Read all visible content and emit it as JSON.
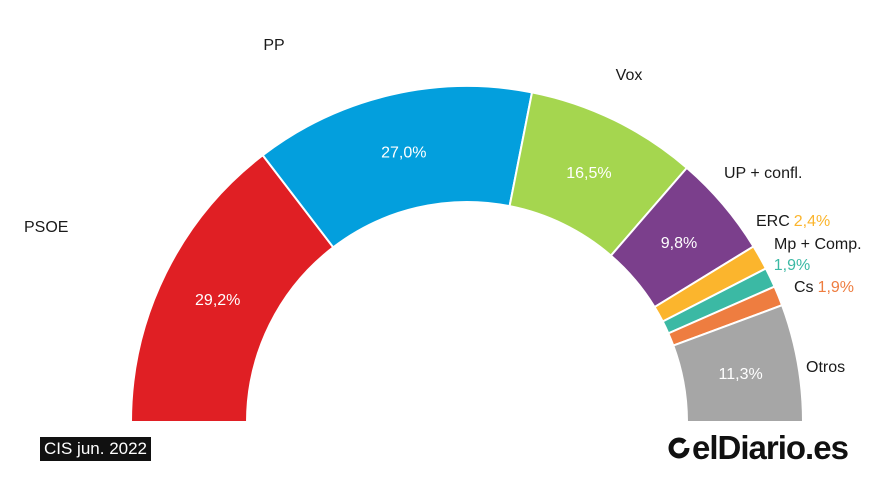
{
  "chart_data": {
    "type": "pie",
    "subtype": "parliament-semicircle",
    "title": "",
    "series": [
      {
        "name": "PSOE",
        "value": 29.2,
        "label": "29,2%",
        "color": "#e01f24"
      },
      {
        "name": "PP",
        "value": 27.0,
        "label": "27,0%",
        "color": "#039fdd"
      },
      {
        "name": "Vox",
        "value": 16.5,
        "label": "16,5%",
        "color": "#a5d64f"
      },
      {
        "name": "UP + confl.",
        "value": 9.8,
        "label": "9,8%",
        "color": "#7b3f8c"
      },
      {
        "name": "ERC",
        "value": 2.4,
        "label": "2,4%",
        "color": "#fbb52d"
      },
      {
        "name": "Mp + Comp.",
        "value": 1.9,
        "label": "1,9%",
        "color": "#3bb9a4"
      },
      {
        "name": "Cs",
        "value": 1.9,
        "label": "1,9%",
        "color": "#ee7d40"
      },
      {
        "name": "Otros",
        "value": 11.3,
        "label": "11,3%",
        "color": "#a6a6a6"
      }
    ]
  },
  "source": "CIS jun. 2022",
  "brand": "elDiario.es",
  "brand_icon": "eldiario-logo-icon"
}
